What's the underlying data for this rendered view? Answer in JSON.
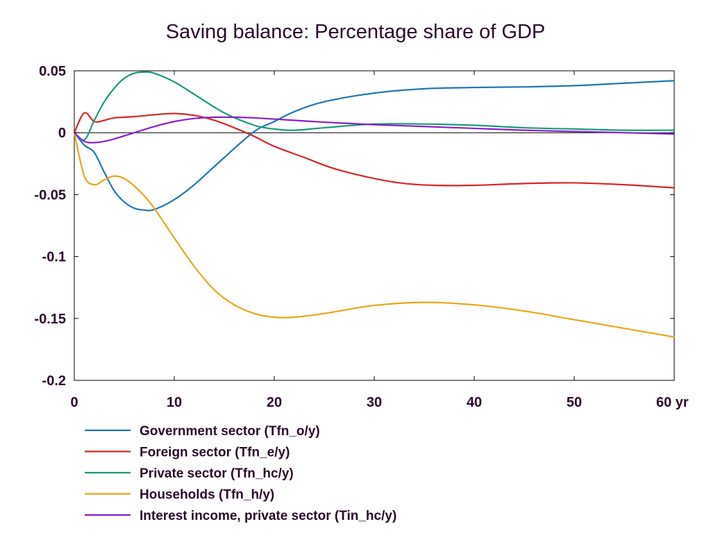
{
  "chart_data": {
    "type": "line",
    "title": "Saving balance: Percentage share of GDP",
    "xlabel": "",
    "ylabel": "",
    "x_unit_label": "yr",
    "xlim": [
      0,
      60
    ],
    "ylim": [
      -0.2,
      0.05
    ],
    "xticks": [
      0,
      10,
      20,
      30,
      40,
      50,
      60
    ],
    "xtick_labels": [
      "0",
      "10",
      "20",
      "30",
      "40",
      "50",
      "60 yr"
    ],
    "yticks": [
      0.05,
      0,
      -0.05,
      -0.1,
      -0.15,
      -0.2
    ],
    "ytick_labels": [
      "0.05",
      "0",
      "-0.05",
      "-0.1",
      "-0.15",
      "-0.2"
    ],
    "grid": false,
    "zero_line": true,
    "legend_position": "bottom-left",
    "series": [
      {
        "name": "Government sector (Tfn_o/y)",
        "color": "#1f77b4",
        "x": [
          0,
          1,
          2,
          3,
          4,
          5,
          6,
          7,
          8,
          10,
          12,
          15,
          18,
          20,
          22,
          25,
          30,
          35,
          40,
          45,
          50,
          55,
          60
        ],
        "y": [
          0,
          -0.01,
          -0.016,
          -0.032,
          -0.047,
          -0.056,
          -0.061,
          -0.0625,
          -0.062,
          -0.054,
          -0.042,
          -0.02,
          0.001,
          0.009,
          0.017,
          0.025,
          0.032,
          0.0355,
          0.0365,
          0.037,
          0.038,
          0.04,
          0.042
        ]
      },
      {
        "name": "Foreign sector (Tfn_e/y)",
        "color": "#d62728",
        "x": [
          0,
          1,
          2,
          3,
          4,
          6,
          8,
          10,
          12,
          14,
          16,
          18,
          20,
          23,
          26,
          30,
          33,
          36,
          40,
          45,
          50,
          55,
          60
        ],
        "y": [
          0,
          0.016,
          0.009,
          0.01,
          0.012,
          0.013,
          0.0145,
          0.0155,
          0.014,
          0.01,
          0.004,
          -0.003,
          -0.011,
          -0.02,
          -0.029,
          -0.037,
          -0.041,
          -0.0425,
          -0.0425,
          -0.041,
          -0.0405,
          -0.042,
          -0.0445
        ]
      },
      {
        "name": "Private sector (Tfn_hc/y)",
        "color": "#1a9a7a",
        "x": [
          0,
          1,
          2,
          3,
          4,
          5,
          6,
          7,
          8,
          10,
          12,
          15,
          18,
          20,
          22,
          25,
          30,
          35,
          40,
          45,
          50,
          55,
          60
        ],
        "y": [
          0,
          -0.006,
          0.01,
          0.025,
          0.036,
          0.044,
          0.048,
          0.049,
          0.048,
          0.041,
          0.031,
          0.016,
          0.006,
          0.003,
          0.002,
          0.004,
          0.007,
          0.007,
          0.006,
          0.004,
          0.003,
          0.002,
          0.002
        ]
      },
      {
        "name": "Households (Tfn_h/y)",
        "color": "#e6a817",
        "x": [
          0,
          1,
          2,
          3,
          4,
          5,
          6,
          7,
          8,
          10,
          12,
          14,
          16,
          18,
          20,
          22,
          25,
          30,
          35,
          40,
          45,
          50,
          55,
          60
        ],
        "y": [
          0,
          -0.035,
          -0.042,
          -0.038,
          -0.035,
          -0.037,
          -0.043,
          -0.051,
          -0.061,
          -0.085,
          -0.108,
          -0.127,
          -0.139,
          -0.146,
          -0.149,
          -0.149,
          -0.146,
          -0.1395,
          -0.137,
          -0.139,
          -0.144,
          -0.151,
          -0.158,
          -0.165
        ]
      },
      {
        "name": "Interest income, private sector (Tin_hc/y)",
        "color": "#8b1fc8",
        "x": [
          0,
          1,
          2,
          3,
          4,
          6,
          8,
          10,
          12,
          14,
          16,
          18,
          20,
          25,
          30,
          35,
          40,
          45,
          50,
          55,
          60
        ],
        "y": [
          0,
          -0.007,
          -0.008,
          -0.007,
          -0.005,
          0,
          0.005,
          0.009,
          0.0115,
          0.0125,
          0.0125,
          0.012,
          0.011,
          0.0085,
          0.0065,
          0.005,
          0.0035,
          0.002,
          0.001,
          0,
          -0.001
        ]
      }
    ]
  }
}
